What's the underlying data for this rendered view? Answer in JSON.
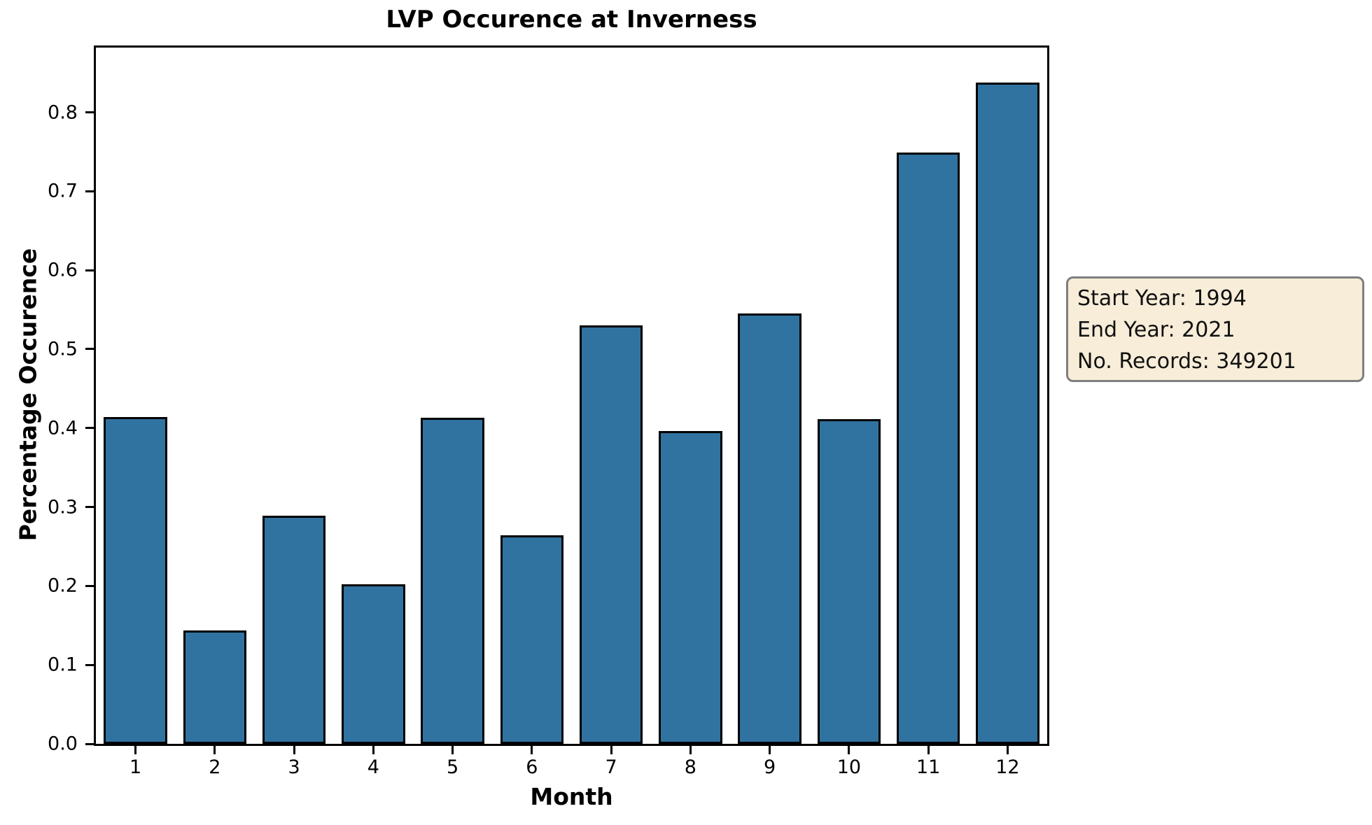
{
  "chart_data": {
    "type": "bar",
    "title": "LVP Occurence at Inverness",
    "xlabel": "Month",
    "ylabel": "Percentage Occurence",
    "categories": [
      "1",
      "2",
      "3",
      "4",
      "5",
      "6",
      "7",
      "8",
      "9",
      "10",
      "11",
      "12"
    ],
    "values": [
      0.414,
      0.144,
      0.289,
      0.202,
      0.413,
      0.264,
      0.53,
      0.396,
      0.545,
      0.411,
      0.749,
      0.838
    ],
    "ylim": [
      0,
      0.882
    ],
    "yticks": [
      0.0,
      0.1,
      0.2,
      0.3,
      0.4,
      0.5,
      0.6,
      0.7,
      0.8
    ],
    "ytick_labels": [
      "0.0",
      "0.1",
      "0.2",
      "0.3",
      "0.4",
      "0.5",
      "0.6",
      "0.7",
      "0.8"
    ],
    "grid": false,
    "legend": "none",
    "bar_color": "#3173A0",
    "bar_edge_color": "#000000",
    "bar_width_fraction": 0.8
  },
  "annotation": {
    "lines": [
      "Start Year: 1994",
      "End Year: 2021",
      "No. Records: 349201"
    ],
    "background": "#F7EDD8",
    "border_color": "#7F7F7F"
  }
}
